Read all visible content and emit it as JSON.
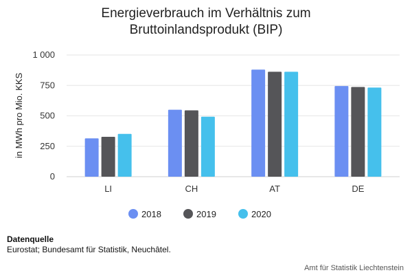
{
  "chart_data": {
    "type": "bar",
    "title": "Energieverbrauch im Verhältnis zum\nBruttoinlandsprodukt (BIP)",
    "ylabel": "in MWh pro Mio. KKS",
    "ylim": [
      0,
      1000
    ],
    "yticks": [
      0,
      250,
      500,
      750,
      1000
    ],
    "ytick_labels": [
      "0",
      "250",
      "500",
      "750",
      "1 000"
    ],
    "grid": true,
    "legend_position": "bottom",
    "categories": [
      "LI",
      "CH",
      "AT",
      "DE"
    ],
    "series": [
      {
        "name": "2018",
        "color": "#6b8ff2",
        "values": [
          315,
          550,
          880,
          745
        ]
      },
      {
        "name": "2019",
        "color": "#555558",
        "values": [
          328,
          545,
          862,
          737
        ]
      },
      {
        "name": "2020",
        "color": "#45c0ec",
        "values": [
          352,
          493,
          862,
          732
        ]
      }
    ]
  },
  "source": {
    "heading": "Datenquelle",
    "text": "Eurostat; Bundesamt für Statistik, Neuchâtel."
  },
  "credit": "Amt für Statistik Liechtenstein"
}
